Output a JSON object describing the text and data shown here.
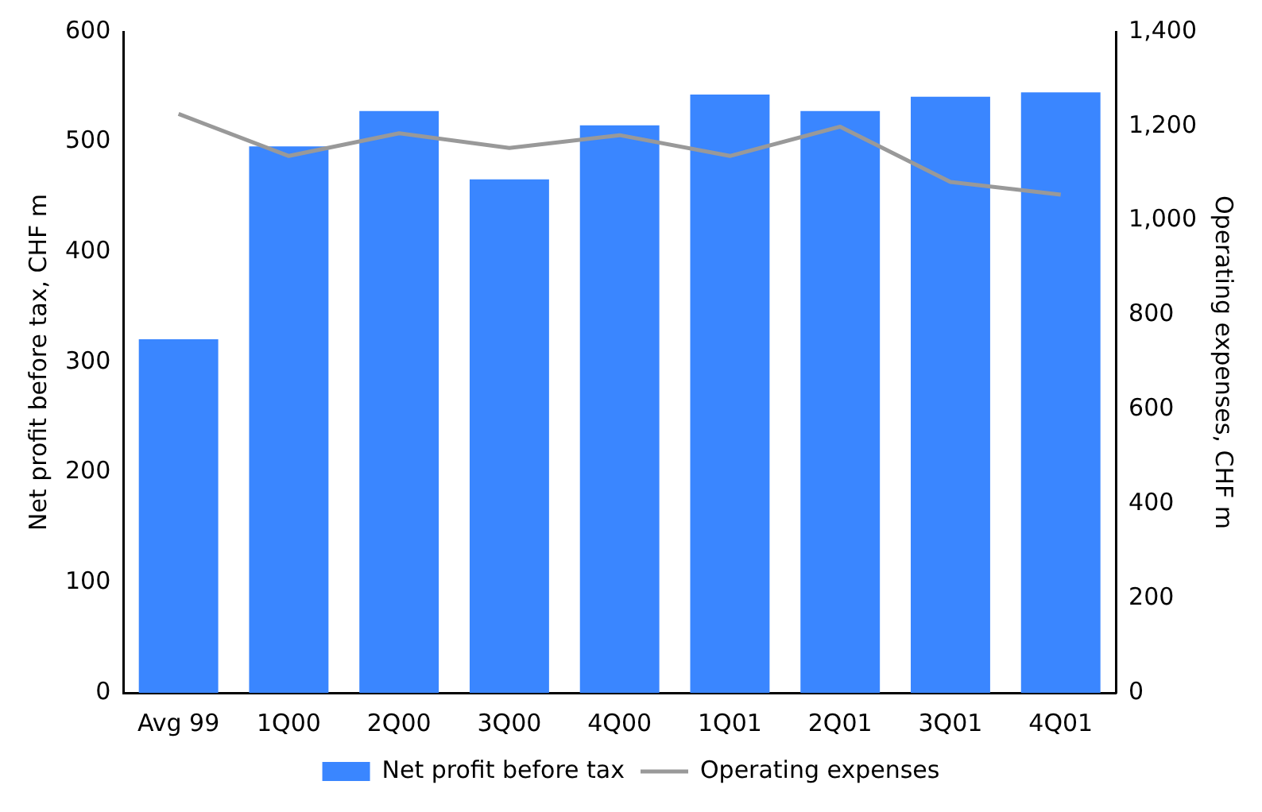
{
  "chart_data": {
    "type": "bar",
    "categories": [
      "Avg 99",
      "1Q00",
      "2Q00",
      "3Q00",
      "4Q00",
      "1Q01",
      "2Q01",
      "3Q01",
      "4Q01"
    ],
    "series": [
      {
        "name": "Net profit before tax",
        "color": "#3a86ff",
        "values": [
          321,
          496,
          528,
          466,
          515,
          543,
          528,
          541,
          545
        ]
      },
      {
        "name": "Operating expenses",
        "type": "line",
        "axis": "y2",
        "color": "#999999",
        "values": [
          1226,
          1137,
          1185,
          1154,
          1181,
          1137,
          1199,
          1082,
          1055
        ]
      }
    ],
    "ylabel": "Net profit before tax, CHF m",
    "y2label": "Operating expenses, CHF m",
    "ylim": [
      0,
      600
    ],
    "yticks": [
      0,
      100,
      200,
      300,
      400,
      500,
      600
    ],
    "y2lim": [
      0,
      1400
    ],
    "y2ticks": [
      0,
      200,
      400,
      600,
      800,
      {
        "value": 1000,
        "label": "1,000"
      },
      {
        "value": 1200,
        "label": "1,200"
      },
      {
        "value": 1400,
        "label": "1,400"
      }
    ],
    "grid": false,
    "legend": "bottom",
    "marker": "none",
    "line_style": "solid"
  }
}
